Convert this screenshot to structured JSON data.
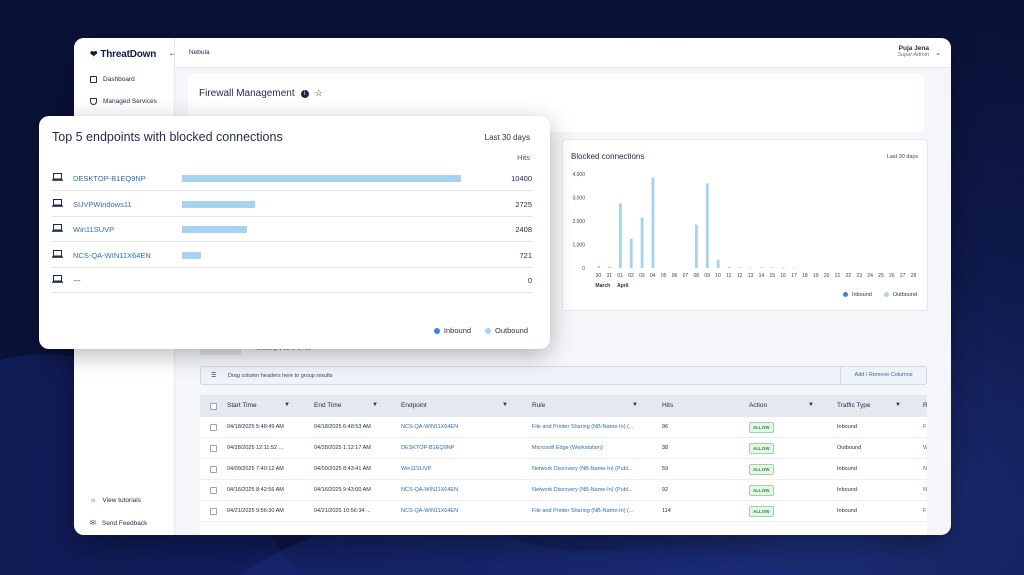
{
  "brand": {
    "name": "ThreatDown"
  },
  "header": {
    "breadcrumb": "Nebula",
    "user_name": "Puja Jena",
    "user_role": "Super Admin"
  },
  "sidebar": {
    "items": [
      {
        "label": "Dashboard",
        "icon": "chart-icon"
      },
      {
        "label": "Managed Services",
        "icon": "shield-icon"
      }
    ],
    "bottom": [
      {
        "label": "View tutorials",
        "icon": "lightbulb-icon"
      },
      {
        "label": "Send Feedback",
        "icon": "mail-icon"
      }
    ]
  },
  "page": {
    "title": "Firewall Management"
  },
  "top5": {
    "title": "Top 5 endpoints with blocked connections",
    "range": "Last 30 days",
    "hits_label": "Hits",
    "legend": [
      {
        "label": "Inbound",
        "color": "#3b82e0"
      },
      {
        "label": "Outbound",
        "color": "#a8d3f0"
      }
    ],
    "rows": [
      {
        "name": "DESKTOP-B1EQ9NP",
        "hits": "10400",
        "value": 10400
      },
      {
        "name": "SUVPWindows11",
        "hits": "2725",
        "value": 2725
      },
      {
        "name": "Win11SUVP",
        "hits": "2408",
        "value": 2408
      },
      {
        "name": "NCS-QA-WIN11X64EN",
        "hits": "721",
        "value": 721
      },
      {
        "name": "---",
        "hits": "0",
        "value": 0
      }
    ]
  },
  "blocked": {
    "title": "Blocked connections",
    "range": "Last 30 days",
    "legend": [
      "Inbound",
      "Outbound"
    ]
  },
  "chart_data": {
    "type": "bar",
    "title": "Blocked connections",
    "categories": [
      "30",
      "31",
      "01",
      "02",
      "03",
      "04",
      "05",
      "06",
      "07",
      "08",
      "09",
      "10",
      "11",
      "12",
      "13",
      "14",
      "15",
      "16",
      "17",
      "18",
      "19",
      "20",
      "21",
      "22",
      "23",
      "24",
      "25",
      "26",
      "27",
      "28"
    ],
    "month_labels": [
      "March",
      "April"
    ],
    "yticks": [
      "0",
      "1,000",
      "2,000",
      "3,000",
      "4,000"
    ],
    "ylim": [
      0,
      4000
    ],
    "series": [
      {
        "name": "Inbound",
        "color": "#3b82e0",
        "values": [
          0,
          0,
          0,
          0,
          0,
          0,
          0,
          0,
          0,
          0,
          0,
          0,
          0,
          0,
          0,
          0,
          0,
          0,
          0,
          0,
          0,
          0,
          0,
          0,
          0,
          0,
          0,
          0,
          0,
          0
        ]
      },
      {
        "name": "Outbound",
        "color": "#a8d3f0",
        "values": [
          80,
          50,
          2750,
          1250,
          2150,
          3850,
          0,
          0,
          0,
          1850,
          3600,
          350,
          40,
          30,
          20,
          30,
          30,
          30,
          20,
          0,
          0,
          0,
          0,
          0,
          0,
          0,
          0,
          0,
          0,
          0
        ]
      }
    ]
  },
  "grid": {
    "showing": "Showing 1-22 of 1,722",
    "group_hint": "Drag column headers here to group results",
    "add_columns": "Add / Remove Columns",
    "columns": [
      "Start Time",
      "End Time",
      "Endpoint",
      "Rule",
      "Hits",
      "Action",
      "Traffic Type",
      "R"
    ],
    "rows": [
      {
        "start": "04/18/2025 5:48:49 AM",
        "end": "04/18/2025 6:48:53 AM",
        "endpoint": "NCS-QA-WIN11X64EN",
        "rule": "File and Printer Sharing (NB-Name-In) (...",
        "hits": "96",
        "action": "ALLOW",
        "traffic": "Inbound",
        "r": "F"
      },
      {
        "start": "04/28/2025 12:11:52 ...",
        "end": "04/28/2025 1:12:17 AM",
        "endpoint": "DESKTOP-B1EQ9NP",
        "rule": "Microsoft Edge (Workstation)",
        "hits": "38",
        "action": "ALLOW",
        "traffic": "Outbound",
        "r": "W"
      },
      {
        "start": "04/09/2025 7:40:12 AM",
        "end": "04/09/2025 8:43:41 AM",
        "endpoint": "Win11SUVP",
        "rule": "Network Discovery (NB-Name-In) (Publ...",
        "hits": "59",
        "action": "ALLOW",
        "traffic": "Inbound",
        "r": "N"
      },
      {
        "start": "04/16/2025 8:42:56 AM",
        "end": "04/16/2025 9:43:00 AM",
        "endpoint": "NCS-QA-WIN11X64EN",
        "rule": "Network Discovery (NB-Name-In) (Publ...",
        "hits": "92",
        "action": "ALLOW",
        "traffic": "Inbound",
        "r": "N"
      },
      {
        "start": "04/21/2025 9:56:30 AM",
        "end": "04/21/2025 10:56:34 ...",
        "endpoint": "NCS-QA-WIN11X64EN",
        "rule": "File and Printer Sharing (NB-Name-In) (...",
        "hits": "114",
        "action": "ALLOW",
        "traffic": "Inbound",
        "r": "F"
      }
    ]
  }
}
